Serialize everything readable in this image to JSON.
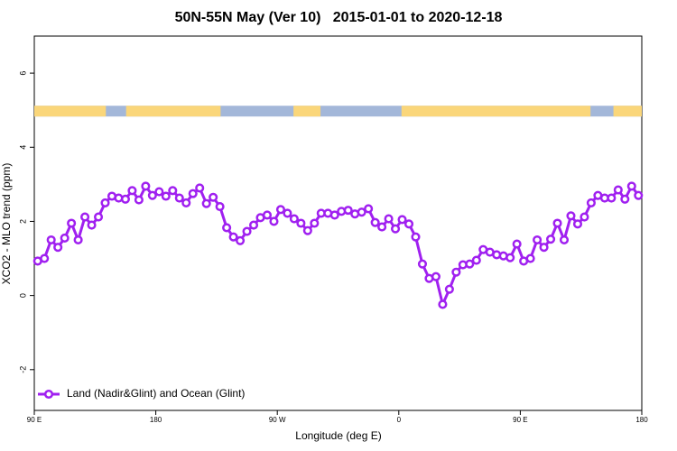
{
  "chart_data": {
    "type": "line",
    "title": "50N-55N May (Ver 10)   2015-01-01 to 2020-12-18",
    "xlabel": "Longitude (deg E)",
    "ylabel": "XCO2 - MLO trend (ppm)",
    "xlim": [
      90,
      540
    ],
    "ylim": [
      -3.1,
      7.0
    ],
    "xticks": [
      {
        "value": 90,
        "label": "90 E"
      },
      180,
      {
        "value": 270,
        "label": "90 W"
      },
      {
        "value": 360,
        "label": "0"
      },
      {
        "value": 450,
        "label": "90 E"
      },
      {
        "value": 540,
        "label": "180"
      }
    ],
    "yticks": [
      -2,
      0,
      2,
      4,
      6
    ],
    "legend": "bottom-left",
    "surface_strip": {
      "ylim": [
        4.83,
        5.12
      ],
      "land_color": "#fad67a",
      "ocean_color": "#a3b7d9",
      "land": [
        [
          90,
          143
        ],
        [
          158,
          228
        ],
        [
          282,
          302
        ],
        [
          362,
          502
        ],
        [
          519,
          540
        ]
      ]
    },
    "x": [
      92.5,
      97.5,
      102.5,
      107.5,
      112.5,
      117.5,
      122.5,
      127.5,
      132.5,
      137.5,
      142.5,
      147.5,
      152.5,
      157.5,
      162.5,
      167.5,
      172.5,
      177.5,
      182.5,
      187.5,
      192.5,
      197.5,
      202.5,
      207.5,
      212.5,
      217.5,
      222.5,
      227.5,
      232.5,
      237.5,
      242.5,
      247.5,
      252.5,
      257.5,
      262.5,
      267.5,
      272.5,
      277.5,
      282.5,
      287.5,
      292.5,
      297.5,
      302.5,
      307.5,
      312.5,
      317.5,
      322.5,
      327.5,
      332.5,
      337.5,
      342.5,
      347.5,
      352.5,
      357.5,
      362.5,
      367.5,
      372.5,
      377.5,
      382.5,
      387.5,
      392.5,
      397.5,
      402.5,
      407.5,
      412.5,
      417.5,
      422.5,
      427.5,
      432.5,
      437.5,
      442.5,
      447.5,
      452.5,
      457.5,
      462.5,
      467.5,
      472.5,
      477.5,
      482.5,
      487.5,
      492.5,
      497.5,
      502.5,
      507.5,
      512.5,
      517.5,
      522.5,
      527.5,
      532.5,
      537.5
    ],
    "series": [
      {
        "name": "Land (Nadir&Glint) and Ocean (Glint)",
        "color": "#a020f0",
        "values": [
          0.93,
          1.0,
          1.5,
          1.3,
          1.55,
          1.95,
          1.5,
          2.12,
          1.9,
          2.12,
          2.5,
          2.68,
          2.63,
          2.6,
          2.83,
          2.58,
          2.95,
          2.7,
          2.8,
          2.68,
          2.83,
          2.63,
          2.5,
          2.75,
          2.9,
          2.48,
          2.65,
          2.4,
          1.83,
          1.58,
          1.48,
          1.73,
          1.9,
          2.1,
          2.17,
          2.0,
          2.32,
          2.22,
          2.07,
          1.95,
          1.75,
          1.95,
          2.22,
          2.22,
          2.17,
          2.27,
          2.3,
          2.2,
          2.25,
          2.34,
          1.97,
          1.85,
          2.07,
          1.8,
          2.05,
          1.93,
          1.58,
          0.85,
          0.46,
          0.51,
          -0.24,
          0.17,
          0.63,
          0.83,
          0.85,
          0.95,
          1.24,
          1.17,
          1.1,
          1.07,
          1.02,
          1.39,
          0.93,
          1.0,
          1.5,
          1.3,
          1.52,
          1.95,
          1.5,
          2.15,
          1.93,
          2.12,
          2.5,
          2.7,
          2.63,
          2.63,
          2.85,
          2.6,
          2.95,
          2.7
        ]
      }
    ]
  }
}
